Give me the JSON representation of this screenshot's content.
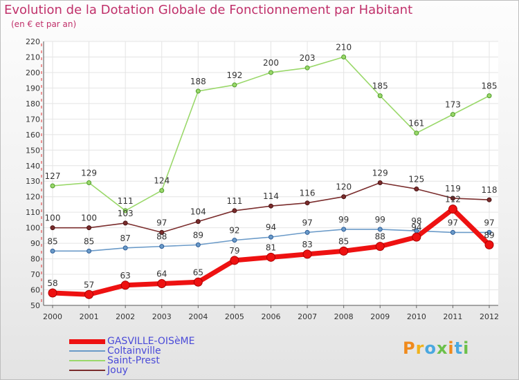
{
  "header": {
    "title": "Evolution de la Dotation Globale de Fonctionnement par Habitant",
    "subtitle": "(en € et par an)"
  },
  "logo": {
    "text": "Proxiti",
    "colors": [
      "#f08a1c",
      "#f0b21c",
      "#4aa8e0",
      "#6cc04a",
      "#f08a1c",
      "#4aa8e0",
      "#6cc04a"
    ]
  },
  "chart_data": {
    "type": "line",
    "title": "Evolution de la Dotation Globale de Fonctionnement par Habitant",
    "subtitle": "(en € et par an)",
    "xlabel": "",
    "ylabel": "",
    "ylim": [
      50,
      220
    ],
    "yticks": [
      50,
      60,
      70,
      80,
      90,
      100,
      110,
      120,
      130,
      140,
      150,
      160,
      170,
      180,
      190,
      200,
      210,
      220
    ],
    "grid": true,
    "legend": "bottom-left",
    "categories": [
      "2000",
      "2001",
      "2002",
      "2003",
      "2004",
      "2005",
      "2006",
      "2007",
      "2008",
      "2009",
      "2010",
      "2011",
      "2012"
    ],
    "series": [
      {
        "name": "GASVILLE-OISèME",
        "color": "#ee1111",
        "values": [
          58,
          57,
          63,
          64,
          65,
          79,
          81,
          83,
          85,
          88,
          94,
          112,
          89
        ]
      },
      {
        "name": "Coltainville",
        "color": "#6a9ac8",
        "values": [
          85,
          85,
          87,
          88,
          89,
          92,
          94,
          97,
          99,
          99,
          98,
          97,
          97
        ]
      },
      {
        "name": "Saint-Prest",
        "color": "#9ad86a",
        "values": [
          127,
          129,
          111,
          124,
          188,
          192,
          200,
          203,
          210,
          185,
          161,
          173,
          185
        ]
      },
      {
        "name": "Jouy",
        "color": "#7a2c2c",
        "values": [
          100,
          100,
          103,
          97,
          104,
          111,
          114,
          116,
          120,
          129,
          125,
          119,
          118
        ]
      }
    ]
  }
}
